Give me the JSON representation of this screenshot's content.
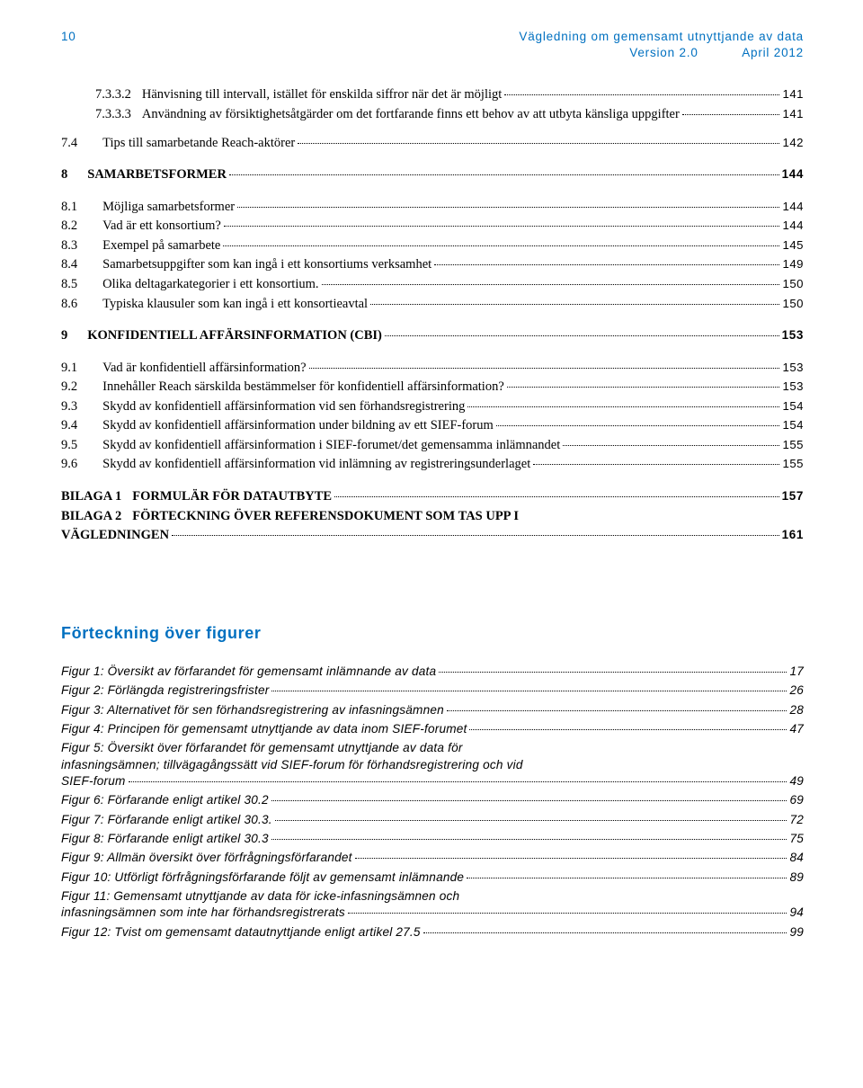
{
  "header": {
    "page_number": "10",
    "title_line1": "Vägledning om gemensamt utnyttjande av data",
    "version": "Version 2.0",
    "date": "April 2012"
  },
  "toc": {
    "pre": [
      {
        "num": "7.3.3.2",
        "title": "Hänvisning till intervall, istället för enskilda siffror när det är möjligt",
        "page": "141"
      },
      {
        "num": "7.3.3.3",
        "title": "Användning av försiktighetsåtgärder om det fortfarande finns ett behov av att utbyta känsliga uppgifter",
        "page": "141"
      }
    ],
    "s7_4": {
      "num": "7.4",
      "title": "Tips till samarbetande Reach-aktörer",
      "page": "142"
    },
    "s8": {
      "num": "8",
      "title": "SAMARBETSFORMER",
      "page": "144"
    },
    "s8_items": [
      {
        "num": "8.1",
        "title": "Möjliga samarbetsformer",
        "page": "144"
      },
      {
        "num": "8.2",
        "title": "Vad är ett konsortium?",
        "page": "144"
      },
      {
        "num": "8.3",
        "title": "Exempel på samarbete",
        "page": "145"
      },
      {
        "num": "8.4",
        "title": "Samarbetsuppgifter som kan ingå i ett konsortiums verksamhet",
        "page": "149"
      },
      {
        "num": "8.5",
        "title": "Olika deltagarkategorier i ett konsortium.",
        "page": "150"
      },
      {
        "num": "8.6",
        "title": "Typiska klausuler som kan ingå i ett konsortieavtal",
        "page": "150"
      }
    ],
    "s9": {
      "num": "9",
      "title": "KONFIDENTIELL AFFÄRSINFORMATION (CBI)",
      "page": "153"
    },
    "s9_items": [
      {
        "num": "9.1",
        "title": "Vad är konfidentiell affärsinformation?",
        "page": "153"
      },
      {
        "num": "9.2",
        "title": "Innehåller Reach särskilda bestämmelser för konfidentiell affärsinformation?",
        "page": "153"
      },
      {
        "num": "9.3",
        "title": "Skydd av konfidentiell affärsinformation vid sen förhandsregistrering",
        "page": "154"
      },
      {
        "num": "9.4",
        "title": "Skydd av konfidentiell affärsinformation under bildning av ett SIEF-forum",
        "page": "154"
      },
      {
        "num": "9.5",
        "title": "Skydd av konfidentiell affärsinformation i SIEF-forumet/det gemensamma inlämnandet",
        "page": "155"
      },
      {
        "num": "9.6",
        "title": "Skydd av konfidentiell affärsinformation vid inlämning av registreringsunderlaget",
        "page": "155"
      }
    ],
    "bilaga1": {
      "num": "BILAGA 1",
      "title": "FORMULÄR FÖR DATAUTBYTE",
      "page": "157"
    },
    "bilaga2": {
      "num": "BILAGA 2",
      "title_a": "FÖRTECKNING ÖVER REFERENSDOKUMENT SOM TAS UPP I",
      "title_b": "VÄGLEDNINGEN",
      "page": "161"
    }
  },
  "figures_heading": "Förteckning över figurer",
  "figures": [
    {
      "title": "Figur 1: Översikt av förfarandet för gemensamt inlämnande av data",
      "page": "17"
    },
    {
      "title": "Figur 2: Förlängda registreringsfrister",
      "page": "26"
    },
    {
      "title": "Figur 3: Alternativet för sen förhandsregistrering av infasningsämnen",
      "page": "28"
    },
    {
      "title": "Figur 4: Principen för gemensamt utnyttjande av data inom SIEF-forumet",
      "page": "47"
    }
  ],
  "figure5": {
    "line1": "Figur 5: Översikt över förfarandet för gemensamt utnyttjande av data för",
    "line2": "infasningsämnen; tillvägagångssätt vid SIEF-forum för förhandsregistrering och vid",
    "line3": "SIEF-forum",
    "page": "49"
  },
  "figures_b": [
    {
      "title": "Figur 6: Förfarande enligt artikel 30.2",
      "page": "69"
    },
    {
      "title": "Figur 7: Förfarande enligt artikel 30.3.",
      "page": "72"
    },
    {
      "title": "Figur 8: Förfarande enligt artikel 30.3",
      "page": "75"
    },
    {
      "title": "Figur 9: Allmän översikt över förfrågningsförfarandet",
      "page": "84"
    },
    {
      "title": "Figur 10: Utförligt förfrågningsförfarande följt av gemensamt inlämnande",
      "page": "89"
    }
  ],
  "figure11": {
    "line1": "Figur 11: Gemensamt utnyttjande av data för icke-infasningsämnen och",
    "line2": "infasningsämnen som inte har förhandsregistrerats",
    "page": "94"
  },
  "figure12": {
    "title": "Figur 12: Tvist om gemensamt datautnyttjande enligt artikel 27.5",
    "page": "99"
  }
}
